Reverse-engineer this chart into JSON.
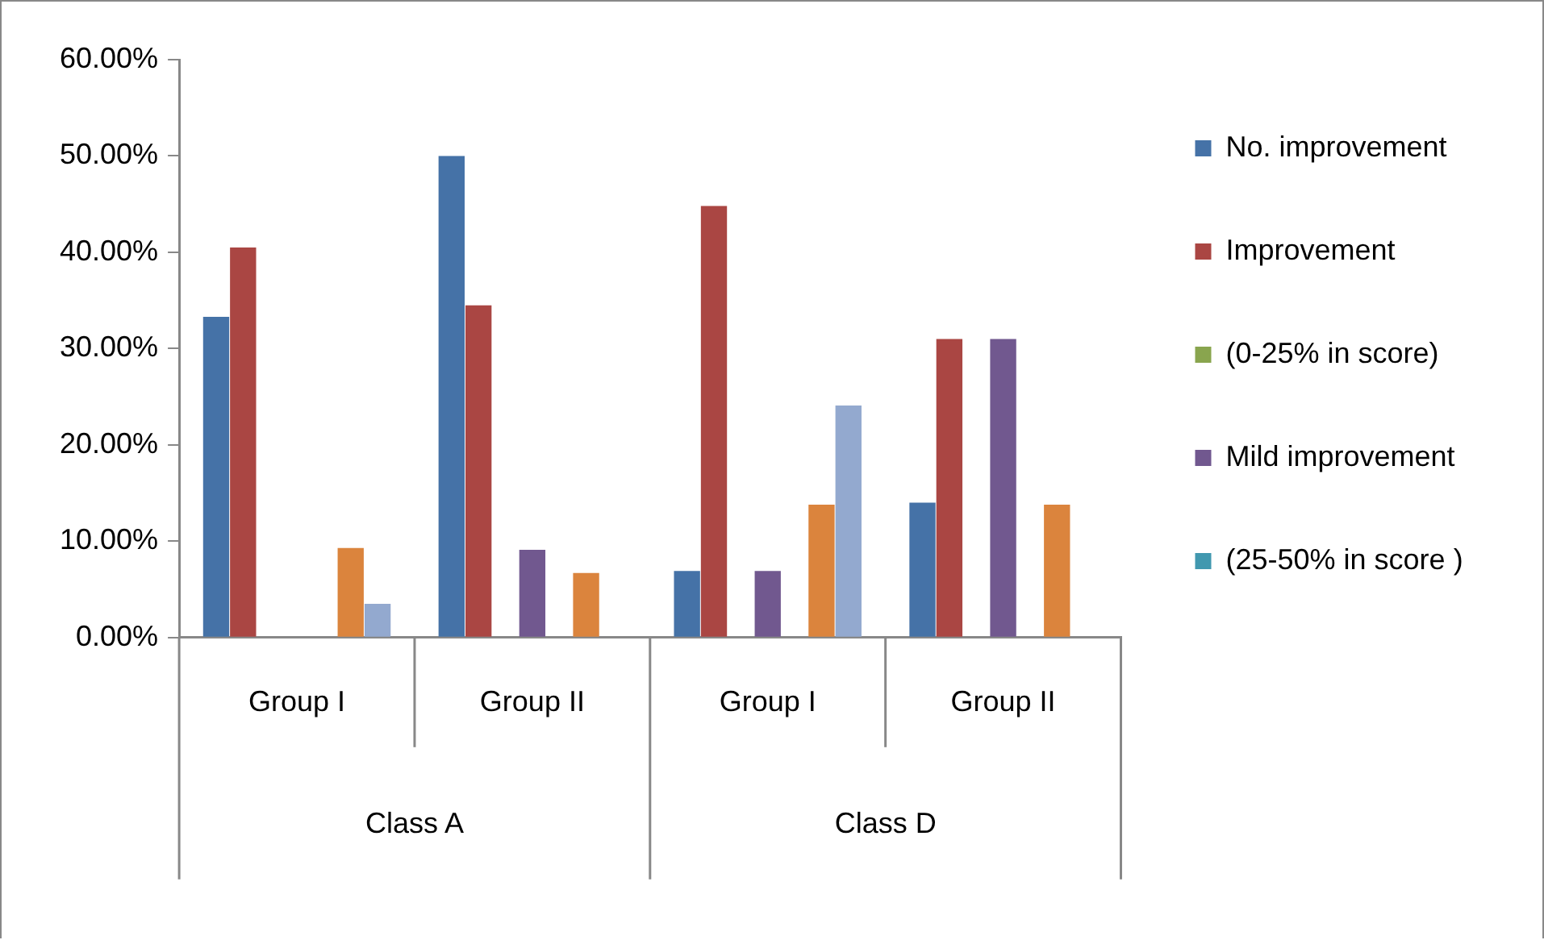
{
  "chart_data": {
    "type": "bar",
    "categories": [
      "Group I",
      "Group II",
      "Group I",
      "Group II"
    ],
    "series": [
      {
        "name": "No. improvement",
        "color": "#4572a7",
        "values": [
          33.3,
          50.0,
          6.9,
          14.0
        ]
      },
      {
        "name": "Improvement",
        "color": "#aa4643",
        "values": [
          40.5,
          34.5,
          44.8,
          31.0
        ]
      },
      {
        "name": "(0-25% in score)",
        "color": "#89a54e",
        "values": [
          0,
          0,
          0,
          0
        ]
      },
      {
        "name": "Mild improvement",
        "color": "#71588f",
        "values": [
          0,
          9.1,
          6.9,
          31.0
        ]
      },
      {
        "name": "(25-50% in score )",
        "color": "#4198af",
        "values": [
          0,
          0,
          0,
          0
        ]
      },
      {
        "color": "#db843d",
        "values": [
          9.3,
          6.7,
          13.8,
          13.8
        ]
      },
      {
        "color": "#93a9cf",
        "values": [
          3.5,
          0,
          24.1,
          0
        ]
      }
    ],
    "ylim": [
      0,
      60
    ],
    "yticks": [
      {
        "value": 0,
        "label": "0.00%"
      },
      {
        "value": 10,
        "label": "10.00%"
      },
      {
        "value": 20,
        "label": "20.00%"
      },
      {
        "value": 30,
        "label": "30.00%"
      },
      {
        "value": 40,
        "label": "40.00%"
      },
      {
        "value": 50,
        "label": "50.00%"
      },
      {
        "value": 60,
        "label": "60.00%"
      }
    ],
    "annotations": [
      "Class A",
      "Class D"
    ],
    "grid": false,
    "legend": "right"
  }
}
